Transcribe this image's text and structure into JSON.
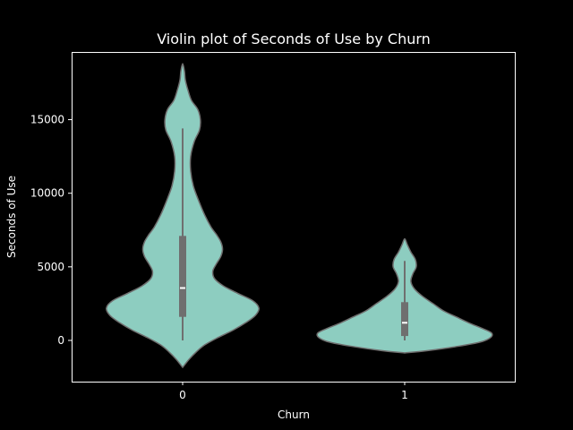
{
  "chart_data": {
    "type": "violin",
    "title": "Violin plot of Seconds of Use by Churn",
    "xlabel": "Churn",
    "ylabel": "Seconds of Use",
    "categories": [
      "0",
      "1"
    ],
    "ylim": [
      -2800,
      19600
    ],
    "yticks": [
      0,
      5000,
      10000,
      15000
    ],
    "ytick_labels": [
      "0",
      "5000",
      "10000",
      "15000"
    ],
    "grid": false,
    "legend": "none",
    "colors": {
      "background": "#000000",
      "violin_fill": "#8dcdc0",
      "violin_edge": "#6f6f6f",
      "box": "#6f6f6f",
      "median": "#ffffff",
      "text": "#ffffff",
      "axes": "#ffffff"
    },
    "violins": [
      {
        "category": "0",
        "box": {
          "whisker_low": 0,
          "q1": 1600,
          "median": 3560,
          "q3": 7100,
          "whisker_high": 14400
        },
        "density": [
          {
            "y": -1830,
            "w": 0.0
          },
          {
            "y": -1300,
            "w": 0.07
          },
          {
            "y": -800,
            "w": 0.15
          },
          {
            "y": -300,
            "w": 0.25
          },
          {
            "y": 200,
            "w": 0.4
          },
          {
            "y": 700,
            "w": 0.57
          },
          {
            "y": 1200,
            "w": 0.71
          },
          {
            "y": 1700,
            "w": 0.82
          },
          {
            "y": 2200,
            "w": 0.86
          },
          {
            "y": 2700,
            "w": 0.79
          },
          {
            "y": 3200,
            "w": 0.62
          },
          {
            "y": 3700,
            "w": 0.46
          },
          {
            "y": 4200,
            "w": 0.36
          },
          {
            "y": 4700,
            "w": 0.34
          },
          {
            "y": 5200,
            "w": 0.38
          },
          {
            "y": 5700,
            "w": 0.43
          },
          {
            "y": 6200,
            "w": 0.45
          },
          {
            "y": 6700,
            "w": 0.43
          },
          {
            "y": 7200,
            "w": 0.38
          },
          {
            "y": 7700,
            "w": 0.32
          },
          {
            "y": 8500,
            "w": 0.25
          },
          {
            "y": 9500,
            "w": 0.18
          },
          {
            "y": 10500,
            "w": 0.12
          },
          {
            "y": 11500,
            "w": 0.09
          },
          {
            "y": 12500,
            "w": 0.09
          },
          {
            "y": 13500,
            "w": 0.13
          },
          {
            "y": 14300,
            "w": 0.19
          },
          {
            "y": 15000,
            "w": 0.2
          },
          {
            "y": 15700,
            "w": 0.17
          },
          {
            "y": 16300,
            "w": 0.1
          },
          {
            "y": 17000,
            "w": 0.06
          },
          {
            "y": 17700,
            "w": 0.03
          },
          {
            "y": 18300,
            "w": 0.02
          },
          {
            "y": 18800,
            "w": 0.0
          }
        ]
      },
      {
        "category": "1",
        "box": {
          "whisker_low": 0,
          "q1": 300,
          "median": 1200,
          "q3": 2600,
          "whisker_high": 5400
        },
        "density": [
          {
            "y": -850,
            "w": 0.0
          },
          {
            "y": -700,
            "w": 0.25
          },
          {
            "y": -400,
            "w": 0.6
          },
          {
            "y": -100,
            "w": 0.86
          },
          {
            "y": 200,
            "w": 0.97
          },
          {
            "y": 500,
            "w": 0.98
          },
          {
            "y": 800,
            "w": 0.88
          },
          {
            "y": 1200,
            "w": 0.72
          },
          {
            "y": 1600,
            "w": 0.58
          },
          {
            "y": 2000,
            "w": 0.44
          },
          {
            "y": 2500,
            "w": 0.32
          },
          {
            "y": 3000,
            "w": 0.2
          },
          {
            "y": 3500,
            "w": 0.11
          },
          {
            "y": 4000,
            "w": 0.07
          },
          {
            "y": 4500,
            "w": 0.09
          },
          {
            "y": 5000,
            "w": 0.13
          },
          {
            "y": 5500,
            "w": 0.12
          },
          {
            "y": 6000,
            "w": 0.07
          },
          {
            "y": 6500,
            "w": 0.03
          },
          {
            "y": 6900,
            "w": 0.0
          }
        ]
      }
    ]
  }
}
